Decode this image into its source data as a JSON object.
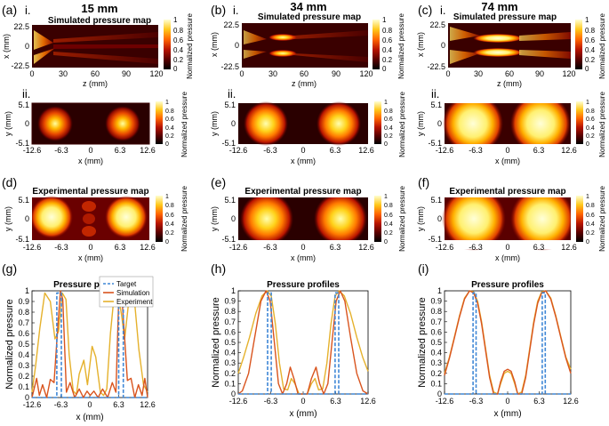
{
  "colors": {
    "target": "#3f87d6",
    "simulation": "#d9541e",
    "experiment": "#e5b12c",
    "colormap": [
      "#000000",
      "#4a0000",
      "#a00000",
      "#e23b00",
      "#ff8c00",
      "#ffd21a",
      "#ffff9a",
      "#ffffff"
    ]
  },
  "columns": [
    {
      "panel_label": "(a)",
      "distance": "15 mm"
    },
    {
      "panel_label": "(b)",
      "distance": "34 mm"
    },
    {
      "panel_label": "(c)",
      "distance": "74 mm"
    }
  ],
  "row_i": {
    "roman": "i.",
    "title": "Simulated pressure map",
    "xlabel": "z (mm)",
    "ylabel": "x (mm)",
    "xticks": [
      "0",
      "30",
      "60",
      "90",
      "120"
    ],
    "yticks": [
      "22.5",
      "0",
      "-22.5"
    ],
    "colorbar_label": "Normalized pressure",
    "colorbar_ticks": [
      "0",
      "0.2",
      "0.4",
      "0.6",
      "0.8",
      "1"
    ]
  },
  "row_ii": {
    "roman": "ii.",
    "xlabel": "x (mm)",
    "ylabel": "y (mm)",
    "xticks": [
      "-12.6",
      "-6.3",
      "0",
      "6.3",
      "12.6"
    ],
    "yticks": [
      "5.1",
      "0",
      "-5.1"
    ],
    "colorbar_label": "Normalized pressure",
    "colorbar_ticks": [
      "0",
      "0.2",
      "0.4",
      "0.6",
      "0.8",
      "1"
    ]
  },
  "row_exp": {
    "labels": [
      "(d)",
      "(e)",
      "(f)"
    ],
    "title": "Experimental pressure map",
    "xlabel": "x (mm)",
    "ylabel": "y (mm)",
    "xticks": [
      "-12.6",
      "-6.3",
      "0",
      "6.3",
      "12.6"
    ],
    "yticks": [
      "5.1",
      "0",
      "-5.1"
    ],
    "colorbar_label": "Normalized pressure",
    "colorbar_ticks": [
      "0",
      "0.2",
      "0.4",
      "0.6",
      "0.8",
      "1"
    ]
  },
  "chart_data": [
    {
      "type": "line",
      "panel": "(g)",
      "title": "Pressure profiles",
      "xlabel": "x (mm)",
      "ylabel": "Normalized pressure",
      "xlim": [
        -12.6,
        12.6
      ],
      "ylim": [
        0,
        1
      ],
      "xticks": [
        "-12.6",
        "-6.3",
        "0",
        "6.3",
        "12.6"
      ],
      "yticks": [
        "0",
        "0.1",
        "0.2",
        "0.3",
        "0.4",
        "0.5",
        "0.6",
        "0.7",
        "0.8",
        "0.9",
        "1"
      ],
      "legend": {
        "placement": "top-right",
        "entries": [
          "Target",
          "Simulation",
          "Experiment"
        ]
      },
      "series": [
        {
          "name": "Target",
          "style": "dashed",
          "x": [
            -12.6,
            -7.2,
            -7.2,
            -6.2,
            -6.2,
            6.3,
            6.3,
            7.3,
            7.3,
            12.6
          ],
          "y": [
            0,
            0,
            0.98,
            0.98,
            0,
            0,
            0.98,
            0.98,
            0,
            0
          ]
        },
        {
          "name": "Simulation",
          "x": [
            -12.6,
            -11.6,
            -11.0,
            -10.3,
            -9.4,
            -8.6,
            -7.8,
            -7.0,
            -6.4,
            -5.9,
            -5.1,
            -4.3,
            -3.3,
            -2.3,
            -1.4,
            -0.6,
            0.1,
            0.9,
            1.8,
            2.8,
            3.9,
            4.9,
            5.7,
            6.3,
            6.9,
            7.5,
            8.2,
            9.0,
            9.8,
            10.6,
            11.4,
            12.0,
            12.6
          ],
          "y": [
            0.0,
            0.18,
            0.02,
            0.12,
            0.0,
            0.17,
            0.14,
            0.65,
            1.0,
            0.92,
            0.05,
            0.14,
            0.0,
            0.08,
            0.0,
            0.06,
            0.02,
            0.06,
            0.0,
            0.08,
            0.0,
            0.14,
            0.05,
            0.92,
            1.0,
            0.62,
            0.16,
            0.18,
            0.0,
            0.12,
            0.02,
            0.18,
            0.0
          ]
        },
        {
          "name": "Experiment",
          "x": [
            -12.6,
            -11.8,
            -10.9,
            -9.8,
            -8.6,
            -7.6,
            -6.8,
            -6.0,
            -5.2,
            -4.5,
            -3.6,
            -2.9,
            -2.3,
            -1.3,
            -0.5,
            0.5,
            1.3,
            2.3,
            3.0,
            3.7,
            4.5,
            5.3,
            6.1,
            6.9,
            7.6,
            8.5,
            9.6,
            10.7,
            11.7,
            12.6
          ],
          "y": [
            0.05,
            0.3,
            0.65,
            0.98,
            0.9,
            0.55,
            0.62,
            0.98,
            0.92,
            0.4,
            0.06,
            0.03,
            0.22,
            0.35,
            0.12,
            0.48,
            0.38,
            0.05,
            0.02,
            0.08,
            0.6,
            0.95,
            0.98,
            0.78,
            0.55,
            0.9,
            0.98,
            0.45,
            0.12,
            0.05
          ]
        }
      ]
    },
    {
      "type": "line",
      "panel": "(h)",
      "title": "Pressure profiles",
      "xlabel": "x (mm)",
      "ylabel": "Normalized pressure",
      "xlim": [
        -12.6,
        12.6
      ],
      "ylim": [
        0,
        1
      ],
      "xticks": [
        "-12.6",
        "-6.3",
        "0",
        "6.3",
        "12.6"
      ],
      "yticks": [
        "0",
        "0.1",
        "0.2",
        "0.3",
        "0.4",
        "0.5",
        "0.6",
        "0.7",
        "0.8",
        "0.9",
        "1"
      ],
      "series": [
        {
          "name": "Target",
          "style": "dashed",
          "x": [
            -12.6,
            -6.9,
            -6.9,
            -6.2,
            -6.2,
            6.2,
            6.2,
            6.9,
            6.9,
            12.6
          ],
          "y": [
            0,
            0,
            0.98,
            0.98,
            0,
            0,
            0.98,
            0.98,
            0,
            0
          ]
        },
        {
          "name": "Simulation",
          "x": [
            -12.6,
            -11.8,
            -10.6,
            -9.4,
            -8.2,
            -7.2,
            -6.4,
            -5.6,
            -4.8,
            -4.0,
            -3.2,
            -2.5,
            -1.8,
            -1.0,
            0.0,
            0.8,
            1.6,
            2.5,
            3.2,
            4.0,
            4.8,
            5.6,
            6.4,
            7.2,
            8.1,
            9.2,
            10.4,
            11.6,
            12.6
          ],
          "y": [
            0.0,
            0.03,
            0.2,
            0.55,
            0.9,
            1.0,
            0.9,
            0.5,
            0.1,
            0.0,
            0.1,
            0.26,
            0.15,
            0.0,
            0.0,
            0.0,
            0.15,
            0.26,
            0.1,
            0.0,
            0.1,
            0.5,
            0.9,
            1.0,
            0.9,
            0.55,
            0.2,
            0.03,
            0.0
          ]
        },
        {
          "name": "Experiment",
          "x": [
            -12.6,
            -11.6,
            -10.4,
            -9.2,
            -8.0,
            -7.0,
            -6.2,
            -5.4,
            -4.6,
            -3.8,
            -3.0,
            -2.3,
            -1.6,
            -0.8,
            0.0,
            0.8,
            1.6,
            2.3,
            3.0,
            3.8,
            4.6,
            5.4,
            6.2,
            7.0,
            8.0,
            9.2,
            10.4,
            11.6,
            12.6
          ],
          "y": [
            0.2,
            0.35,
            0.55,
            0.78,
            0.95,
            1.0,
            0.95,
            0.68,
            0.3,
            0.05,
            0.04,
            0.15,
            0.1,
            0.0,
            0.0,
            0.0,
            0.1,
            0.15,
            0.04,
            0.05,
            0.3,
            0.68,
            0.95,
            1.0,
            0.95,
            0.78,
            0.55,
            0.35,
            0.22
          ]
        }
      ]
    },
    {
      "type": "line",
      "panel": "(i)",
      "title": "Pressure profiles",
      "xlabel": "x (mm)",
      "ylabel": "Normalized pressure",
      "xlim": [
        -12.6,
        12.6
      ],
      "ylim": [
        0,
        1
      ],
      "xticks": [
        "-12.6",
        "-6.3",
        "0",
        "6.3",
        "12.6"
      ],
      "yticks": [
        "0",
        "0.1",
        "0.2",
        "0.3",
        "0.4",
        "0.5",
        "0.6",
        "0.7",
        "0.8",
        "0.9",
        "1"
      ],
      "series": [
        {
          "name": "Target",
          "style": "dashed",
          "x": [
            -12.6,
            -6.9,
            -6.9,
            -6.3,
            -6.3,
            6.9,
            6.9,
            7.5,
            7.5,
            12.6
          ],
          "y": [
            0,
            0,
            0.98,
            0.98,
            0,
            0,
            0.98,
            0.98,
            0,
            0
          ]
        },
        {
          "name": "Simulation",
          "x": [
            -12.6,
            -11.6,
            -10.6,
            -9.6,
            -8.6,
            -7.6,
            -6.8,
            -6.0,
            -5.2,
            -4.4,
            -3.6,
            -2.8,
            -2.0,
            -1.4,
            -0.7,
            0.0,
            0.7,
            1.4,
            2.0,
            2.8,
            3.6,
            4.4,
            5.2,
            6.0,
            6.8,
            7.6,
            8.6,
            9.6,
            10.6,
            11.6,
            12.6
          ],
          "y": [
            0.18,
            0.35,
            0.55,
            0.75,
            0.92,
            1.0,
            0.98,
            0.88,
            0.68,
            0.42,
            0.16,
            0.0,
            0.0,
            0.12,
            0.22,
            0.24,
            0.22,
            0.12,
            0.0,
            0.0,
            0.16,
            0.42,
            0.68,
            0.88,
            0.98,
            1.0,
            0.92,
            0.75,
            0.55,
            0.35,
            0.2
          ]
        },
        {
          "name": "Experiment",
          "x": [
            -12.6,
            -11.6,
            -10.6,
            -9.6,
            -8.6,
            -7.6,
            -6.8,
            -6.0,
            -5.2,
            -4.4,
            -3.6,
            -2.8,
            -2.0,
            -1.4,
            -0.7,
            0.0,
            0.7,
            1.4,
            2.0,
            2.8,
            3.6,
            4.4,
            5.2,
            6.0,
            6.8,
            7.6,
            8.6,
            9.6,
            10.6,
            11.6,
            12.6
          ],
          "y": [
            0.2,
            0.36,
            0.56,
            0.76,
            0.93,
            1.0,
            0.99,
            0.9,
            0.7,
            0.44,
            0.18,
            0.02,
            0.0,
            0.1,
            0.2,
            0.22,
            0.2,
            0.1,
            0.0,
            0.02,
            0.18,
            0.44,
            0.7,
            0.9,
            0.99,
            1.0,
            0.93,
            0.76,
            0.56,
            0.36,
            0.24
          ]
        }
      ]
    }
  ]
}
